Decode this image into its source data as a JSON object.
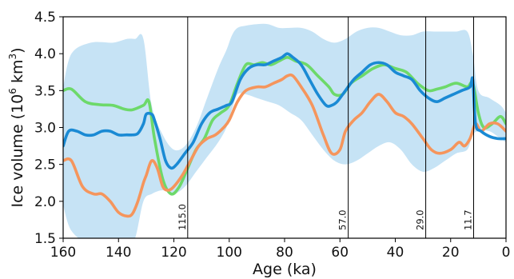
{
  "chart_data": {
    "type": "line",
    "xlabel": "Age (ka)",
    "ylabel_parts": {
      "pre": "Ice volume (10",
      "exp": "6",
      "mid": " km",
      "exp2": "3",
      "post": ")"
    },
    "xlim": [
      160,
      0
    ],
    "ylim": [
      1.5,
      4.5
    ],
    "x_ticks": [
      160,
      140,
      120,
      100,
      80,
      60,
      40,
      20,
      0
    ],
    "y_ticks": [
      1.5,
      2.0,
      2.5,
      3.0,
      3.5,
      4.0,
      4.5
    ],
    "x_tick_labels": [
      "160",
      "140",
      "120",
      "100",
      "80",
      "60",
      "40",
      "20",
      "0"
    ],
    "y_tick_labels": [
      "1.5",
      "2.0",
      "2.5",
      "3.0",
      "3.5",
      "4.0",
      "4.5"
    ],
    "grid": false,
    "vertical_lines": [
      {
        "x": 115.0,
        "label": "115.0"
      },
      {
        "x": 57.0,
        "label": "57.0"
      },
      {
        "x": 29.0,
        "label": "29.0"
      },
      {
        "x": 11.7,
        "label": "11.7"
      }
    ],
    "band": {
      "color": "#c6e3f5",
      "x": [
        160,
        157,
        150,
        142,
        137,
        134,
        131,
        128,
        124,
        120,
        116,
        112,
        108,
        104,
        101,
        99,
        97,
        94,
        90,
        86,
        82,
        78,
        74,
        70,
        66,
        62,
        58,
        54,
        50,
        46,
        42,
        38,
        34,
        30,
        26,
        22,
        18,
        14,
        12,
        10,
        6,
        2,
        0
      ],
      "upper": [
        3.55,
        4.0,
        4.15,
        4.15,
        4.2,
        4.2,
        4.2,
        3.3,
        2.9,
        2.7,
        2.75,
        3.0,
        3.4,
        3.8,
        4.05,
        4.25,
        4.35,
        4.38,
        4.4,
        4.4,
        4.35,
        4.35,
        4.35,
        4.3,
        4.2,
        4.15,
        4.2,
        4.3,
        4.35,
        4.35,
        4.3,
        4.25,
        4.25,
        4.3,
        4.3,
        4.3,
        4.3,
        4.3,
        4.0,
        3.5,
        3.4,
        3.3,
        3.2
      ],
      "lower": [
        1.95,
        1.6,
        1.4,
        1.35,
        1.4,
        1.5,
        2.0,
        2.1,
        2.15,
        2.1,
        2.2,
        2.4,
        2.6,
        2.8,
        3.0,
        3.25,
        3.45,
        3.45,
        3.4,
        3.35,
        3.3,
        3.2,
        3.1,
        2.9,
        2.7,
        2.55,
        2.5,
        2.55,
        2.65,
        2.75,
        2.8,
        2.7,
        2.5,
        2.4,
        2.45,
        2.55,
        2.65,
        2.7,
        2.9,
        2.95,
        2.95,
        2.85,
        2.8
      ]
    },
    "series": [
      {
        "color": "#6dd96a",
        "x": [
          160,
          157,
          152,
          147,
          142,
          138,
          135,
          131,
          129,
          127,
          124,
          121,
          118,
          115,
          112,
          109,
          106,
          103,
          100,
          97,
          94,
          91,
          88,
          85,
          82,
          79,
          76,
          72,
          68,
          64,
          62,
          59,
          56,
          52,
          48,
          44,
          40,
          36,
          32,
          28,
          25,
          22,
          18,
          14,
          12,
          10,
          8,
          5,
          2,
          0
        ],
        "y": [
          3.5,
          3.52,
          3.35,
          3.31,
          3.3,
          3.25,
          3.24,
          3.3,
          3.35,
          2.85,
          2.3,
          2.1,
          2.2,
          2.45,
          2.7,
          2.85,
          3.1,
          3.2,
          3.3,
          3.6,
          3.85,
          3.85,
          3.88,
          3.85,
          3.9,
          3.95,
          3.9,
          3.85,
          3.7,
          3.55,
          3.45,
          3.45,
          3.6,
          3.7,
          3.8,
          3.85,
          3.8,
          3.75,
          3.6,
          3.5,
          3.52,
          3.55,
          3.6,
          3.55,
          3.6,
          3.2,
          3.0,
          3.05,
          3.15,
          3.05
        ]
      },
      {
        "color": "#f5955c",
        "x": [
          160,
          157,
          153,
          149,
          146,
          143,
          140,
          137,
          135,
          133,
          131,
          130,
          128,
          126,
          124,
          122,
          120,
          117,
          114,
          111,
          108,
          105,
          102,
          100,
          97,
          94,
          90,
          87,
          84,
          81,
          79,
          77,
          74,
          70,
          66,
          63,
          60,
          58,
          55,
          52,
          49,
          46,
          43,
          40,
          37,
          34,
          30,
          27,
          24,
          20,
          17,
          15,
          13,
          11,
          9,
          6,
          3,
          0
        ],
        "y": [
          2.55,
          2.55,
          2.2,
          2.1,
          2.1,
          2.0,
          1.85,
          1.8,
          1.83,
          2.0,
          2.25,
          2.35,
          2.55,
          2.45,
          2.2,
          2.15,
          2.2,
          2.35,
          2.55,
          2.75,
          2.85,
          2.9,
          3.0,
          3.1,
          3.35,
          3.5,
          3.55,
          3.55,
          3.6,
          3.65,
          3.7,
          3.7,
          3.55,
          3.3,
          2.9,
          2.65,
          2.7,
          2.95,
          3.1,
          3.2,
          3.35,
          3.45,
          3.35,
          3.2,
          3.15,
          3.05,
          2.85,
          2.7,
          2.65,
          2.7,
          2.8,
          2.75,
          2.85,
          3.05,
          2.95,
          3.05,
          3.05,
          2.95
        ]
      },
      {
        "color": "#1a8ad4",
        "x": [
          160,
          158,
          155,
          152,
          149,
          146,
          143,
          140,
          137,
          135,
          133,
          131,
          130,
          128,
          127,
          125,
          123,
          121,
          119,
          116,
          113,
          110,
          107,
          104,
          101,
          99,
          96,
          93,
          90,
          87,
          84,
          81,
          79,
          77,
          74,
          71,
          68,
          65,
          63,
          61,
          58,
          55,
          52,
          49,
          46,
          43,
          40,
          37,
          34,
          31,
          28,
          25,
          22,
          19,
          16,
          13,
          12,
          11,
          9,
          6,
          3,
          0
        ],
        "y": [
          2.75,
          2.95,
          2.95,
          2.9,
          2.9,
          2.95,
          2.95,
          2.9,
          2.9,
          2.9,
          2.92,
          3.05,
          3.18,
          3.18,
          3.1,
          2.85,
          2.55,
          2.45,
          2.5,
          2.65,
          2.8,
          3.05,
          3.2,
          3.25,
          3.3,
          3.35,
          3.65,
          3.8,
          3.85,
          3.85,
          3.9,
          3.95,
          4.0,
          3.95,
          3.85,
          3.65,
          3.45,
          3.3,
          3.3,
          3.35,
          3.5,
          3.65,
          3.75,
          3.85,
          3.88,
          3.85,
          3.75,
          3.7,
          3.65,
          3.5,
          3.4,
          3.35,
          3.4,
          3.45,
          3.5,
          3.55,
          3.65,
          3.05,
          2.95,
          2.88,
          2.85,
          2.85
        ]
      }
    ]
  }
}
